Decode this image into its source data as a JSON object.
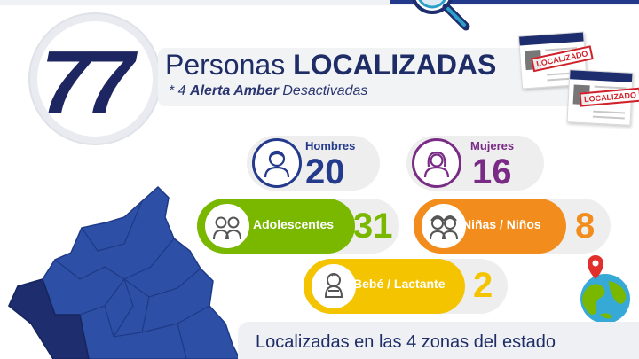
{
  "header": {
    "total": "77",
    "title_prefix": "Personas",
    "title_bold": "LOCALIZADAS",
    "subtitle_prefix": "* 4",
    "subtitle_bold": "Alerta Amber",
    "subtitle_suffix": "Desactivadas"
  },
  "cards": {
    "stamp_text": "LOCALIZADO"
  },
  "stats": {
    "hombres": {
      "label": "Hombres",
      "value": "20",
      "color": "#243a8c",
      "icon": "man-icon"
    },
    "mujeres": {
      "label": "Mujeres",
      "value": "16",
      "color": "#7a2b86",
      "icon": "woman-icon"
    },
    "adolescentes": {
      "label": "Adolescentes",
      "value": "31",
      "color": "#7ab800",
      "icon": "teens-icon"
    },
    "ninos": {
      "label": "Niñas / Niños",
      "value": "8",
      "color": "#f28c1c",
      "icon": "children-icon"
    },
    "bebe": {
      "label": "Bebé / Lactante",
      "value": "2",
      "color": "#f5c400",
      "icon": "baby-icon"
    }
  },
  "footer": {
    "zones_text": "Localizadas en las 4 zonas del estado"
  },
  "colors": {
    "navy": "#1d2660",
    "map_blue": "#2e4fa6",
    "map_dark": "#1d2d6e"
  }
}
